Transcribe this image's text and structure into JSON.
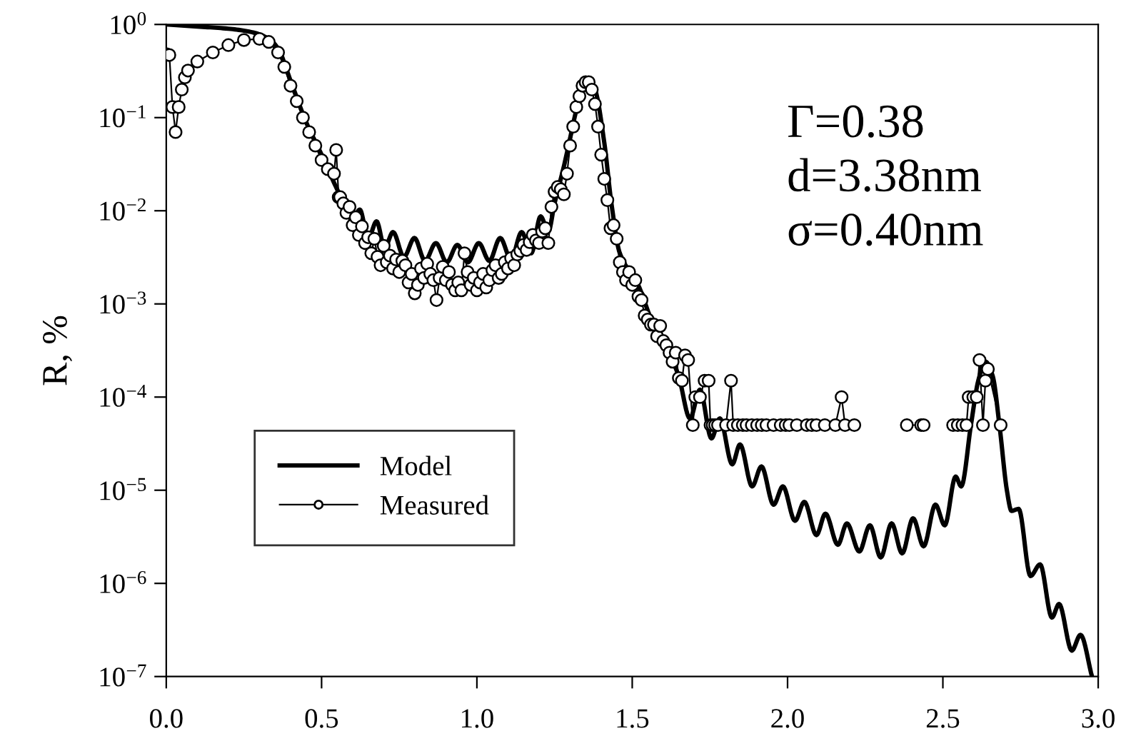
{
  "chart_data": {
    "type": "line",
    "ylabel": "R, %",
    "log": "y",
    "xlim": [
      0.0,
      3.0
    ],
    "ylim": [
      1e-07,
      1
    ],
    "xticks": [
      {
        "value": 0.0,
        "label": "0.0"
      },
      {
        "value": 0.5,
        "label": "0.5"
      },
      {
        "value": 1.0,
        "label": "1.0"
      },
      {
        "value": 1.5,
        "label": "1.5"
      },
      {
        "value": 2.0,
        "label": "2.0"
      },
      {
        "value": 2.5,
        "label": "2.5"
      },
      {
        "value": 3.0,
        "label": "3.0"
      }
    ],
    "yticks": [
      {
        "value": 1e-07,
        "label": "10$^{−7}$"
      },
      {
        "value": 1e-06,
        "label": "10$^{−6}$"
      },
      {
        "value": 1e-05,
        "label": "10$^{−5}$"
      },
      {
        "value": 0.0001,
        "label": "10$^{−4}$"
      },
      {
        "value": 0.001,
        "label": "10$^{−3}$"
      },
      {
        "value": 0.01,
        "label": "10$^{−2}$"
      },
      {
        "value": 0.1,
        "label": "10$^{−1}$"
      },
      {
        "value": 1,
        "label": "10$^{0}$"
      }
    ],
    "grid": false,
    "legend": "bottom left",
    "annotations": [
      "Γ=0.38",
      "d=3.38nm",
      "σ=0.40nm"
    ],
    "series": [
      {
        "name": "Model",
        "color": "#000000",
        "marker": "none",
        "line_style": "solid",
        "x": [
          0.0,
          0.1,
          0.2,
          0.28,
          0.33,
          0.36,
          0.4,
          0.45,
          0.5,
          0.55,
          0.6,
          0.623,
          0.65,
          0.677,
          0.703,
          0.73,
          0.765,
          0.799,
          0.833,
          0.868,
          0.903,
          0.937,
          0.971,
          1.006,
          1.04,
          1.075,
          1.11,
          1.144,
          1.175,
          1.205,
          1.23,
          1.25,
          1.28,
          1.3,
          1.32,
          1.34,
          1.358,
          1.38,
          1.41,
          1.433,
          1.46,
          1.519,
          1.565,
          1.617,
          1.649,
          1.686,
          1.718,
          1.755,
          1.782,
          1.822,
          1.847,
          1.886,
          1.916,
          1.955,
          1.985,
          2.024,
          2.054,
          2.093,
          2.122,
          2.162,
          2.191,
          2.231,
          2.265,
          2.3,
          2.335,
          2.369,
          2.404,
          2.438,
          2.476,
          2.506,
          2.541,
          2.559,
          2.591,
          2.614,
          2.637,
          2.66,
          2.683,
          2.706,
          2.721,
          2.744,
          2.782,
          2.813,
          2.851,
          2.874,
          2.915,
          2.943,
          2.98
        ],
        "values": [
          1.0,
          0.95,
          0.9,
          0.82,
          0.7,
          0.55,
          0.25,
          0.09,
          0.04,
          0.017,
          0.008,
          0.0103,
          0.005,
          0.0077,
          0.004,
          0.0059,
          0.0032,
          0.0051,
          0.0029,
          0.0045,
          0.0028,
          0.0043,
          0.0028,
          0.0045,
          0.0029,
          0.0051,
          0.003,
          0.0059,
          0.0035,
          0.0087,
          0.006,
          0.012,
          0.03,
          0.06,
          0.12,
          0.2,
          0.25,
          0.2,
          0.054,
          0.012,
          0.0035,
          0.0016,
          0.00063,
          0.0003,
          0.00017,
          5.9e-05,
          0.00012,
          3.6e-05,
          5.9e-05,
          1.9e-05,
          3.1e-05,
          1.1e-05,
          1.8e-05,
          7e-06,
          1.1e-05,
          4.7e-06,
          7.5e-06,
          3.3e-06,
          5.6e-06,
          2.6e-06,
          4.4e-06,
          2.2e-06,
          4.2e-06,
          1.9e-06,
          4.4e-06,
          2.1e-06,
          5e-06,
          2.5e-06,
          7e-06,
          4.2e-06,
          1.4e-05,
          1.1e-05,
          5.2e-05,
          0.00015,
          0.00024,
          0.00017,
          4.7e-05,
          1e-05,
          6e-06,
          6.3e-06,
          1.2e-06,
          1.6e-06,
          4.3e-07,
          6e-07,
          1.9e-07,
          2.8e-07,
          1e-07
        ]
      },
      {
        "name": "Measured",
        "color": "#000000",
        "marker": "circle",
        "line_style": "solid",
        "x": [
          0.0,
          0.01,
          0.02,
          0.03,
          0.04,
          0.05,
          0.06,
          0.07,
          0.1,
          0.15,
          0.2,
          0.25,
          0.3,
          0.33,
          0.36,
          0.38,
          0.4,
          0.42,
          0.44,
          0.46,
          0.48,
          0.5,
          0.52,
          0.54,
          0.547,
          0.555,
          0.56,
          0.57,
          0.58,
          0.59,
          0.6,
          0.61,
          0.62,
          0.63,
          0.64,
          0.65,
          0.66,
          0.67,
          0.68,
          0.69,
          0.7,
          0.71,
          0.72,
          0.73,
          0.74,
          0.75,
          0.76,
          0.77,
          0.78,
          0.79,
          0.8,
          0.81,
          0.82,
          0.83,
          0.84,
          0.85,
          0.86,
          0.87,
          0.88,
          0.89,
          0.9,
          0.91,
          0.92,
          0.93,
          0.94,
          0.95,
          0.96,
          0.97,
          0.98,
          0.99,
          1.0,
          1.01,
          1.02,
          1.03,
          1.04,
          1.05,
          1.06,
          1.07,
          1.08,
          1.09,
          1.1,
          1.11,
          1.12,
          1.13,
          1.14,
          1.15,
          1.16,
          1.17,
          1.18,
          1.19,
          1.2,
          1.21,
          1.22,
          1.23,
          1.24,
          1.25,
          1.26,
          1.27,
          1.28,
          1.29,
          1.3,
          1.31,
          1.32,
          1.33,
          1.34,
          1.35,
          1.36,
          1.37,
          1.38,
          1.39,
          1.4,
          1.41,
          1.42,
          1.43,
          1.44,
          1.45,
          1.46,
          1.47,
          1.48,
          1.49,
          1.5,
          1.51,
          1.52,
          1.53,
          1.54,
          1.55,
          1.56,
          1.57,
          1.58,
          1.59,
          1.6,
          1.61,
          1.62,
          1.63,
          1.64,
          1.65,
          1.66,
          1.67,
          1.68,
          1.695,
          1.703,
          1.718,
          1.733,
          1.746,
          1.752,
          1.759,
          1.767,
          1.776,
          1.802,
          1.818,
          1.825,
          1.84,
          1.856,
          1.868,
          1.885,
          1.902,
          1.917,
          1.932,
          1.955,
          1.978,
          1.994,
          2.006,
          2.03,
          2.062,
          2.078,
          2.093,
          2.12,
          2.154,
          2.174,
          2.185,
          2.215,
          2.3,
          2.384,
          2.43,
          2.438,
          2.5,
          2.533,
          2.548,
          2.563,
          2.576,
          2.583,
          2.598,
          2.609,
          2.618,
          2.629,
          2.637,
          2.645,
          2.686
        ],
        "values": [
          0.48,
          0.47,
          0.13,
          0.07,
          0.13,
          0.2,
          0.27,
          0.32,
          0.4,
          0.5,
          0.6,
          0.68,
          0.7,
          0.65,
          0.5,
          0.35,
          0.22,
          0.15,
          0.1,
          0.07,
          0.05,
          0.035,
          0.028,
          0.025,
          0.045,
          0.014,
          0.014,
          0.012,
          0.0095,
          0.011,
          0.007,
          0.0085,
          0.0055,
          0.0068,
          0.0045,
          0.0052,
          0.0035,
          0.005,
          0.0032,
          0.0026,
          0.0042,
          0.0028,
          0.0033,
          0.0024,
          0.003,
          0.0022,
          0.0029,
          0.0026,
          0.0017,
          0.0021,
          0.0013,
          0.0016,
          0.0024,
          0.0019,
          0.0027,
          0.0021,
          0.0018,
          0.0011,
          0.0019,
          0.0025,
          0.0018,
          0.0022,
          0.0016,
          0.0014,
          0.0017,
          0.0014,
          0.0035,
          0.0022,
          0.0016,
          0.0019,
          0.0014,
          0.0017,
          0.0021,
          0.0015,
          0.0018,
          0.0023,
          0.0026,
          0.0019,
          0.0021,
          0.0028,
          0.0024,
          0.0031,
          0.0026,
          0.0034,
          0.0037,
          0.0043,
          0.0038,
          0.0046,
          0.0055,
          0.0048,
          0.0045,
          0.006,
          0.0065,
          0.0045,
          0.011,
          0.016,
          0.018,
          0.017,
          0.015,
          0.025,
          0.05,
          0.08,
          0.13,
          0.17,
          0.22,
          0.24,
          0.24,
          0.2,
          0.14,
          0.08,
          0.04,
          0.022,
          0.013,
          0.0065,
          0.007,
          0.005,
          0.0028,
          0.0022,
          0.0018,
          0.0022,
          0.0016,
          0.0018,
          0.0012,
          0.0011,
          0.00075,
          0.00068,
          0.0006,
          0.0006,
          0.00045,
          0.00058,
          0.0004,
          0.00036,
          0.0003,
          0.00024,
          0.0003,
          0.00016,
          0.00015,
          0.00028,
          0.00025,
          5e-05,
          0.0001,
          0.0001,
          0.00015,
          0.00015,
          5e-05,
          5e-05,
          5e-05,
          5e-05,
          5e-05,
          0.00015,
          5e-05,
          5e-05,
          5e-05,
          5e-05,
          5e-05,
          5e-05,
          5e-05,
          5e-05,
          5e-05,
          5e-05,
          5e-05,
          5e-05,
          5e-05,
          5e-05,
          5e-05,
          5e-05,
          5e-05,
          5e-05,
          0.0001,
          5e-05,
          5e-05,
          null,
          5e-05,
          5e-05,
          5e-05,
          null,
          5e-05,
          5e-05,
          5e-05,
          5e-05,
          0.0001,
          0.0001,
          0.0001,
          0.00025,
          5e-05,
          0.00015,
          0.0002,
          5e-05
        ]
      }
    ]
  }
}
